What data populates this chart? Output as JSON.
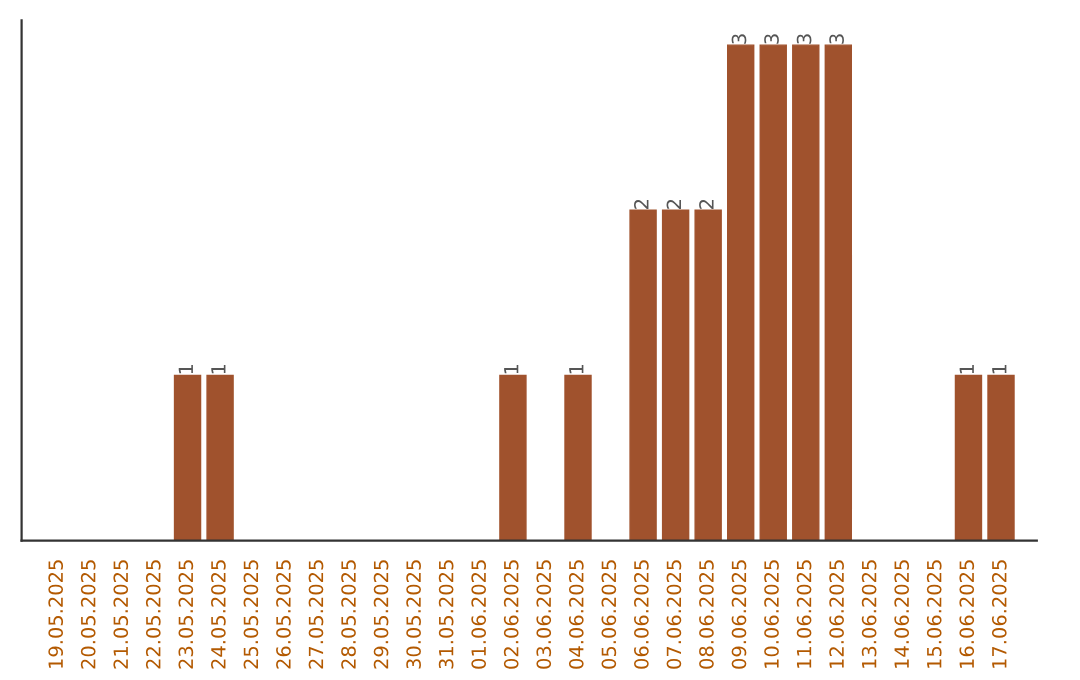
{
  "chart_data": {
    "type": "bar",
    "categories": [
      "19.05.2025",
      "20.05.2025",
      "21.05.2025",
      "22.05.2025",
      "23.05.2025",
      "24.05.2025",
      "25.05.2025",
      "26.05.2025",
      "27.05.2025",
      "28.05.2025",
      "29.05.2025",
      "30.05.2025",
      "31.05.2025",
      "01.06.2025",
      "02.06.2025",
      "03.06.2025",
      "04.06.2025",
      "05.06.2025",
      "06.06.2025",
      "07.06.2025",
      "08.06.2025",
      "09.06.2025",
      "10.06.2025",
      "11.06.2025",
      "12.06.2025",
      "13.06.2025",
      "14.06.2025",
      "15.06.2025",
      "16.06.2025",
      "17.06.2025"
    ],
    "values": [
      0,
      0,
      0,
      0,
      1,
      1,
      0,
      0,
      0,
      0,
      0,
      0,
      0,
      0,
      1,
      0,
      1,
      0,
      2,
      2,
      2,
      3,
      3,
      3,
      3,
      0,
      0,
      0,
      1,
      1
    ],
    "value_labels": [
      null,
      null,
      null,
      null,
      "1",
      "1",
      null,
      null,
      null,
      null,
      null,
      null,
      null,
      null,
      "1",
      null,
      "1",
      null,
      "2",
      "2",
      "2",
      "3",
      "3",
      "3",
      "3",
      null,
      null,
      null,
      "1",
      "1"
    ],
    "color": "#a0522d",
    "grid": false,
    "legend": false,
    "tick_labels": "x"
  }
}
